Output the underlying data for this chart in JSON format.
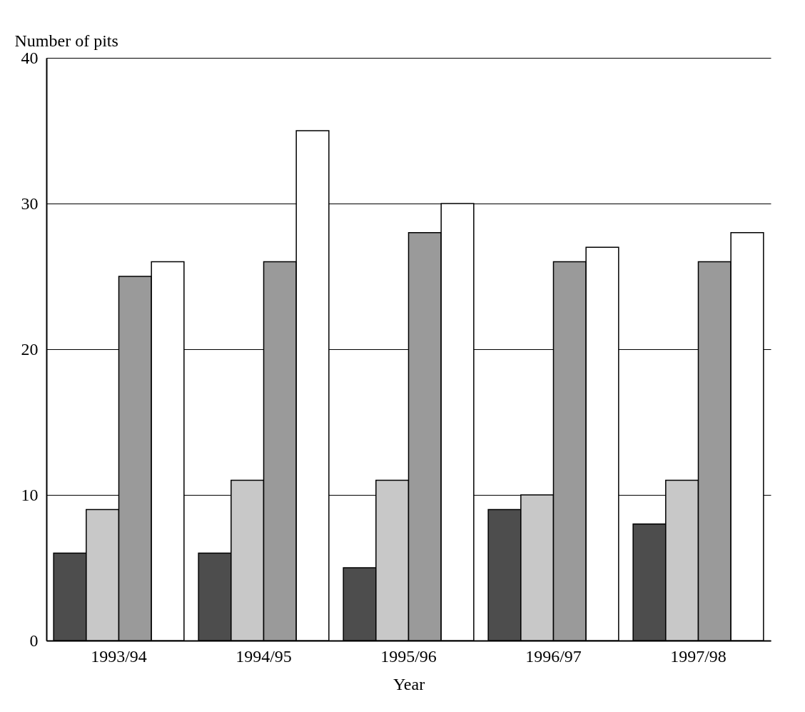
{
  "chart_data": {
    "type": "bar",
    "xlabel": "Year",
    "ylabel": "Number of pits",
    "categories": [
      "1993/94",
      "1994/95",
      "1995/96",
      "1996/97",
      "1997/98"
    ],
    "series": [
      {
        "color": "#4d4d4d",
        "values": [
          6,
          6,
          5,
          9,
          8
        ]
      },
      {
        "color": "#c8c8c8",
        "values": [
          9,
          11,
          11,
          10,
          11
        ]
      },
      {
        "color": "#9a9a9a",
        "values": [
          25,
          26,
          28,
          26,
          26
        ]
      },
      {
        "color": "#ffffff",
        "values": [
          26,
          35,
          30,
          27,
          28
        ]
      }
    ],
    "ylim": [
      0,
      40
    ],
    "yticks": [
      0,
      10,
      20,
      30,
      40
    ],
    "grid": "y",
    "legend": false
  }
}
